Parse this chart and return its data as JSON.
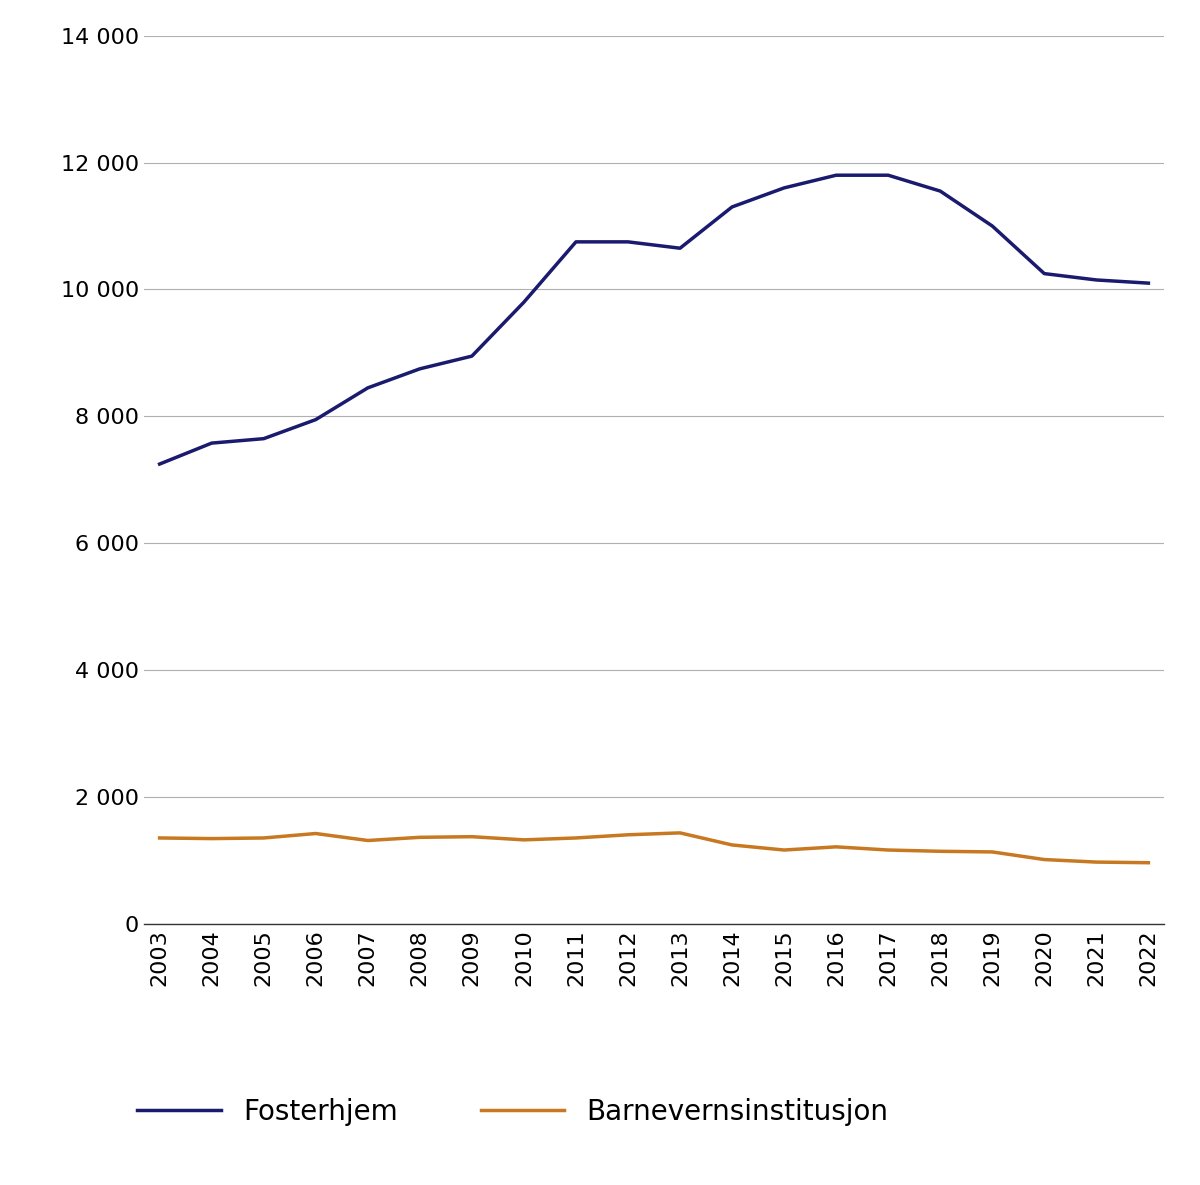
{
  "years": [
    2003,
    2004,
    2005,
    2006,
    2007,
    2008,
    2009,
    2010,
    2011,
    2012,
    2013,
    2014,
    2015,
    2016,
    2017,
    2018,
    2019,
    2020,
    2021,
    2022
  ],
  "fosterhjem": [
    7250,
    7580,
    7650,
    7950,
    8450,
    8750,
    8950,
    9800,
    10750,
    10750,
    10650,
    11300,
    11600,
    11800,
    11800,
    11550,
    11000,
    10250,
    10150,
    10100
  ],
  "barnevernsinstitusjon": [
    1360,
    1350,
    1360,
    1430,
    1320,
    1370,
    1380,
    1330,
    1360,
    1410,
    1440,
    1250,
    1170,
    1220,
    1170,
    1150,
    1140,
    1020,
    980,
    970
  ],
  "fosterhjem_color": "#1a1a6e",
  "barnevernsinstitusjon_color": "#c87820",
  "background_color": "#ffffff",
  "grid_color": "#b0b0b0",
  "ylim": [
    0,
    14000
  ],
  "yticks": [
    0,
    2000,
    4000,
    6000,
    8000,
    10000,
    12000,
    14000
  ],
  "line_width": 2.5,
  "legend_fosterhjem": "Fosterhjem",
  "legend_barnevernsinstitusjon": "Barnevernsinstitusjon",
  "tick_fontsize": 16,
  "legend_fontsize": 20
}
